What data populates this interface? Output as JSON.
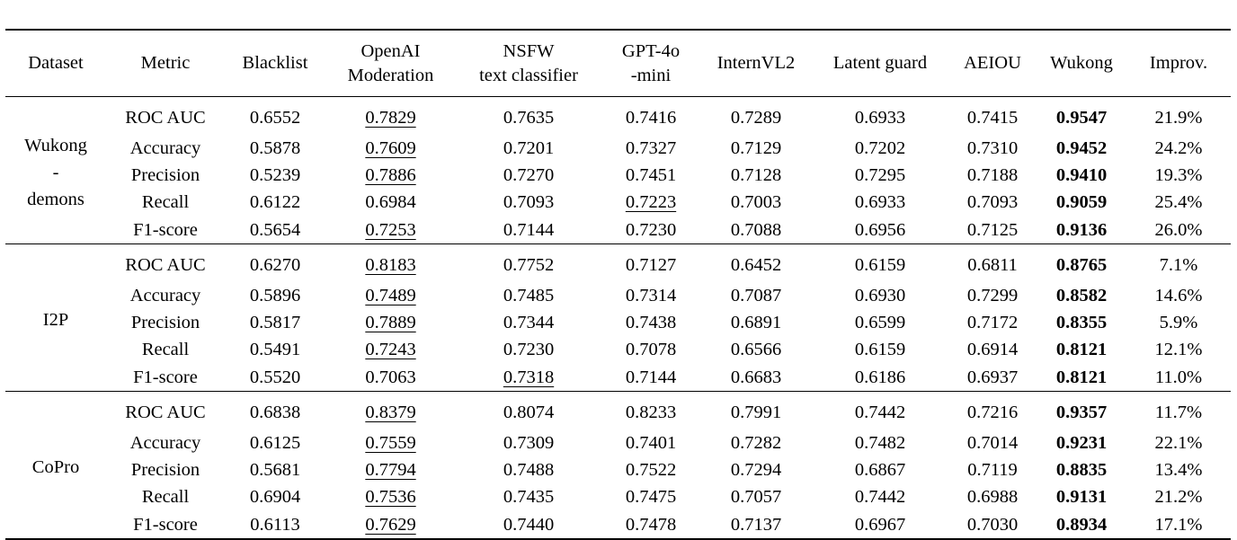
{
  "table": {
    "headers": [
      [
        "Dataset"
      ],
      [
        "Metric"
      ],
      [
        "Blacklist"
      ],
      [
        "OpenAI",
        "Moderation"
      ],
      [
        "NSFW",
        "text classifier"
      ],
      [
        "GPT-4o",
        "-mini"
      ],
      [
        "InternVL2"
      ],
      [
        "Latent guard"
      ],
      [
        "AEIOU"
      ],
      [
        "Wukong"
      ],
      [
        "Improv."
      ]
    ],
    "groups": [
      {
        "dataset_lines": [
          "Wukong",
          "-",
          "demons"
        ],
        "rows": [
          {
            "metric": "ROC AUC",
            "values": [
              "0.6552",
              "0.7829",
              "0.7635",
              "0.7416",
              "0.7289",
              "0.6933",
              "0.7415",
              "0.9547"
            ],
            "improv": "21.9%",
            "underline": 1
          },
          {
            "metric": "Accuracy",
            "values": [
              "0.5878",
              "0.7609",
              "0.7201",
              "0.7327",
              "0.7129",
              "0.7202",
              "0.7310",
              "0.9452"
            ],
            "improv": "24.2%",
            "underline": 1
          },
          {
            "metric": "Precision",
            "values": [
              "0.5239",
              "0.7886",
              "0.7270",
              "0.7451",
              "0.7128",
              "0.7295",
              "0.7188",
              "0.9410"
            ],
            "improv": "19.3%",
            "underline": 1
          },
          {
            "metric": "Recall",
            "values": [
              "0.6122",
              "0.6984",
              "0.7093",
              "0.7223",
              "0.7003",
              "0.6933",
              "0.7093",
              "0.9059"
            ],
            "improv": "25.4%",
            "underline": 3
          },
          {
            "metric": "F1-score",
            "values": [
              "0.5654",
              "0.7253",
              "0.7144",
              "0.7230",
              "0.7088",
              "0.6956",
              "0.7125",
              "0.9136"
            ],
            "improv": "26.0%",
            "underline": 1
          }
        ]
      },
      {
        "dataset_lines": [
          "I2P"
        ],
        "rows": [
          {
            "metric": "ROC AUC",
            "values": [
              "0.6270",
              "0.8183",
              "0.7752",
              "0.7127",
              "0.6452",
              "0.6159",
              "0.6811",
              "0.8765"
            ],
            "improv": "7.1%",
            "underline": 1
          },
          {
            "metric": "Accuracy",
            "values": [
              "0.5896",
              "0.7489",
              "0.7485",
              "0.7314",
              "0.7087",
              "0.6930",
              "0.7299",
              "0.8582"
            ],
            "improv": "14.6%",
            "underline": 1
          },
          {
            "metric": "Precision",
            "values": [
              "0.5817",
              "0.7889",
              "0.7344",
              "0.7438",
              "0.6891",
              "0.6599",
              "0.7172",
              "0.8355"
            ],
            "improv": "5.9%",
            "underline": 1
          },
          {
            "metric": "Recall",
            "values": [
              "0.5491",
              "0.7243",
              "0.7230",
              "0.7078",
              "0.6566",
              "0.6159",
              "0.6914",
              "0.8121"
            ],
            "improv": "12.1%",
            "underline": 1
          },
          {
            "metric": "F1-score",
            "values": [
              "0.5520",
              "0.7063",
              "0.7318",
              "0.7144",
              "0.6683",
              "0.6186",
              "0.6937",
              "0.8121"
            ],
            "improv": "11.0%",
            "underline": 2
          }
        ]
      },
      {
        "dataset_lines": [
          "CoPro"
        ],
        "rows": [
          {
            "metric": "ROC AUC",
            "values": [
              "0.6838",
              "0.8379",
              "0.8074",
              "0.8233",
              "0.7991",
              "0.7442",
              "0.7216",
              "0.9357"
            ],
            "improv": "11.7%",
            "underline": 1
          },
          {
            "metric": "Accuracy",
            "values": [
              "0.6125",
              "0.7559",
              "0.7309",
              "0.7401",
              "0.7282",
              "0.7482",
              "0.7014",
              "0.9231"
            ],
            "improv": "22.1%",
            "underline": 1
          },
          {
            "metric": "Precision",
            "values": [
              "0.5681",
              "0.7794",
              "0.7488",
              "0.7522",
              "0.7294",
              "0.6867",
              "0.7119",
              "0.8835"
            ],
            "improv": "13.4%",
            "underline": 1
          },
          {
            "metric": "Recall",
            "values": [
              "0.6904",
              "0.7536",
              "0.7435",
              "0.7475",
              "0.7057",
              "0.7442",
              "0.6988",
              "0.9131"
            ],
            "improv": "21.2%",
            "underline": 1
          },
          {
            "metric": "F1-score",
            "values": [
              "0.6113",
              "0.7629",
              "0.7440",
              "0.7478",
              "0.7137",
              "0.6967",
              "0.7030",
              "0.8934"
            ],
            "improv": "17.1%",
            "underline": 1
          }
        ]
      }
    ]
  }
}
